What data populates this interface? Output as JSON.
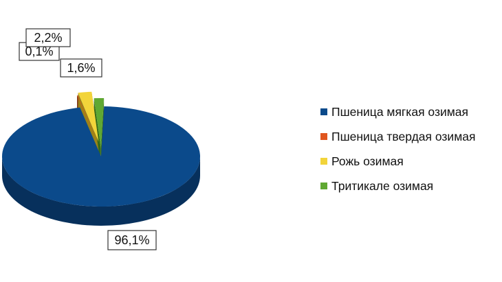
{
  "chart_data": {
    "type": "pie",
    "style": "3d-exploded",
    "slices": [
      {
        "name": "Пшеница мягкая озимая",
        "value": 96.1,
        "label": "96,1%",
        "color": "#0b4a8b",
        "side_color": "#07305c"
      },
      {
        "name": "Пшеница твердая озимая",
        "value": 0.1,
        "label": "0,1%",
        "color": "#e0561e",
        "side_color": "#7a2a0c"
      },
      {
        "name": "Рожь озимая",
        "value": 2.2,
        "label": "2,2%",
        "color": "#f2d43a",
        "side_color": "#9b8418"
      },
      {
        "name": "Тритикале озимая",
        "value": 1.6,
        "label": "1,6%",
        "color": "#5fa832",
        "side_color": "#356a18"
      }
    ],
    "legend_position": "right"
  }
}
